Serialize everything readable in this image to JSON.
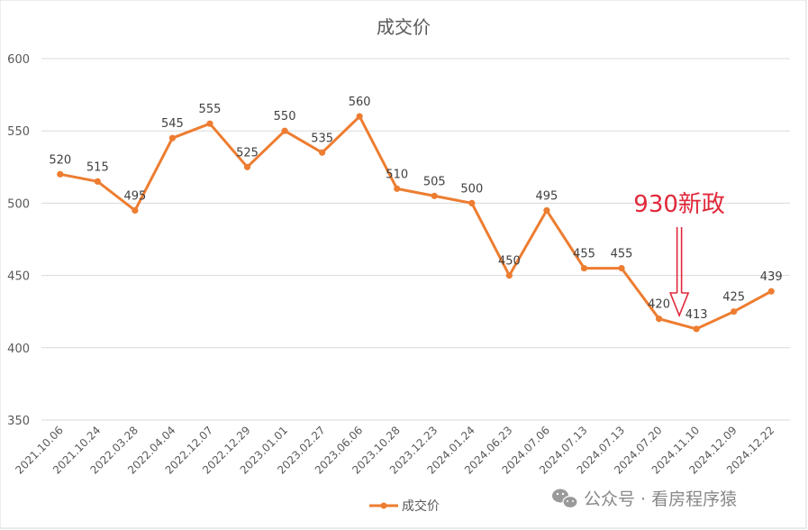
{
  "chart_data": {
    "type": "line",
    "title": "成交价",
    "categories": [
      "2021.10.06",
      "2021.10.24",
      "2022.03.28",
      "2022.04.04",
      "2022.12.07",
      "2022.12.29",
      "2023.01.01",
      "2023.02.27",
      "2023.06.06",
      "2023.10.28",
      "2023.12.23",
      "2024.01.24",
      "2024.06.23",
      "2024.07.06",
      "2024.07.13",
      "2024.07.13",
      "2024.07.20",
      "2024.11.10",
      "2024.12.09",
      "2024.12.22"
    ],
    "series": [
      {
        "name": "成交价",
        "values": [
          520,
          515,
          495,
          545,
          555,
          525,
          550,
          535,
          560,
          510,
          505,
          500,
          450,
          495,
          455,
          455,
          420,
          413,
          425,
          439
        ]
      }
    ],
    "ylim": [
      350,
      600
    ],
    "yticks": [
      350,
      400,
      450,
      500,
      550,
      600
    ],
    "grid": true,
    "legend": "bottom",
    "colors": {
      "line": "#ed7d31",
      "grid": "#d9d9d9",
      "annotation": "#e0283a"
    },
    "annotation": {
      "text": "930新政",
      "category_index": 17
    }
  },
  "watermark": {
    "icon": "wechat-icon",
    "text": "公众号 · 看房程序猿"
  }
}
